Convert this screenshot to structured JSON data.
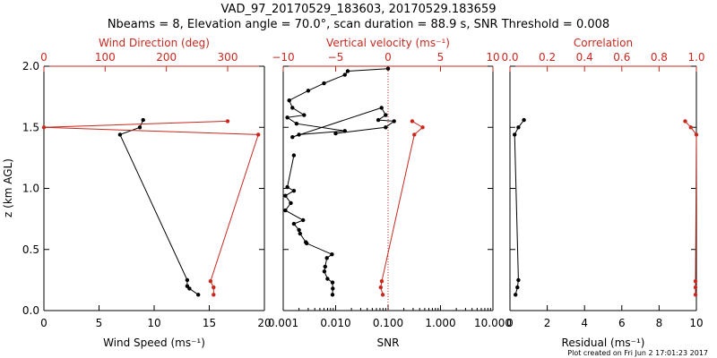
{
  "title": "VAD_97_20170529_183603, 20170529.183659",
  "subtitle": "Nbeams = 8, Elevation angle = 70.0°, scan duration = 88.9 s, SNR Threshold = 0.008",
  "footer": "Plot created on Fri Jun  2 17:01:23 2017",
  "colors": {
    "black": "#000000",
    "red": "#c8281e"
  },
  "chart_data": [
    {
      "type": "scatter",
      "panel": "wind",
      "ylabel": "z (km AGL)",
      "ylim": [
        0,
        2.0
      ],
      "yticks": [
        0.0,
        0.5,
        1.0,
        1.5,
        2.0
      ],
      "ytick_labels": [
        "0.0",
        "0.5",
        "1.0",
        "1.5",
        "2.0"
      ],
      "xlabel": "Wind Speed (ms⁻¹)",
      "xlim": [
        0,
        20
      ],
      "xticks": [
        0,
        5,
        10,
        15,
        20
      ],
      "xtick_labels": [
        "0",
        "5",
        "10",
        "15",
        "20"
      ],
      "xlabel_top": "Wind Direction (deg)",
      "xlim_top": [
        0,
        360
      ],
      "xticks_top": [
        0,
        100,
        200,
        300
      ],
      "xtick_labels_top": [
        "0",
        "100",
        "200",
        "300"
      ],
      "series": [
        {
          "axis": "bottom",
          "color": "#000000",
          "x": [
            9.0,
            8.7,
            6.9,
            13.0,
            13.0,
            13.2,
            14.0
          ],
          "y": [
            1.56,
            1.5,
            1.44,
            0.25,
            0.2,
            0.18,
            0.13
          ]
        },
        {
          "axis": "top",
          "color": "#c8281e",
          "x": [
            300,
            0,
            350,
            272,
            277,
            277
          ],
          "y": [
            1.55,
            1.5,
            1.44,
            0.24,
            0.19,
            0.13
          ]
        }
      ]
    },
    {
      "type": "line",
      "panel": "snr",
      "xlabel": "SNR",
      "xscale": "log",
      "xlim": [
        0.001,
        10
      ],
      "xticks": [
        0.001,
        0.01,
        0.1,
        1,
        10
      ],
      "xtick_labels": [
        "0.001",
        "0.010",
        "0.100",
        "1.000",
        "10.000"
      ],
      "xlabel_top": "Vertical velocity (ms⁻¹)",
      "xlim_top": [
        -10,
        10
      ],
      "xticks_top": [
        -10,
        -5,
        0,
        5,
        10
      ],
      "xtick_labels_top": [
        "−10",
        "−5",
        "0",
        "5",
        "10"
      ],
      "reference_line": {
        "axis": "bottom",
        "x": 0.1
      },
      "series": [
        {
          "axis": "bottom",
          "color": "#000000",
          "x": [
            0.1,
            0.017,
            0.015,
            0.006,
            0.003,
            0.0013,
            0.0015,
            0.0025,
            0.0012,
            0.0018,
            0.015,
            0.002,
            0.0015,
            0.075,
            0.09,
            0.065,
            0.13,
            0.09,
            0.01
          ],
          "y": [
            1.98,
            1.96,
            1.93,
            1.86,
            1.8,
            1.72,
            1.66,
            1.6,
            1.58,
            1.53,
            1.47,
            1.44,
            1.42,
            1.66,
            1.6,
            1.56,
            1.55,
            1.5,
            1.45
          ]
        },
        {
          "axis": "bottom",
          "color": "#000000",
          "x": [
            0.0016,
            0.0012,
            0.0016,
            0.0011,
            0.0014,
            0.0011,
            0.0024,
            0.0016,
            0.002,
            0.0021,
            0.0027,
            0.0028,
            0.0085,
            0.0068,
            0.0063,
            0.0061,
            0.007,
            0.0087,
            0.0088,
            0.0087
          ],
          "y": [
            1.27,
            1.01,
            0.98,
            0.94,
            0.88,
            0.82,
            0.74,
            0.71,
            0.66,
            0.63,
            0.56,
            0.55,
            0.46,
            0.43,
            0.36,
            0.32,
            0.26,
            0.23,
            0.18,
            0.13
          ]
        },
        {
          "axis": "top",
          "color": "#c8281e",
          "x": [
            2.3,
            3.3,
            2.5,
            -0.6,
            -0.7,
            -0.5
          ],
          "y": [
            1.55,
            1.5,
            1.44,
            0.24,
            0.19,
            0.13
          ]
        }
      ]
    },
    {
      "type": "scatter",
      "panel": "residual",
      "xlabel": "Residual (ms⁻¹)",
      "xlim": [
        0,
        10
      ],
      "xticks": [
        0,
        2,
        4,
        6,
        8,
        10
      ],
      "xtick_labels": [
        "0",
        "2",
        "4",
        "6",
        "8",
        "10"
      ],
      "xlabel_top": "Correlation",
      "xlim_top": [
        0,
        1
      ],
      "xticks_top": [
        0,
        0.2,
        0.4,
        0.6,
        0.8,
        1.0
      ],
      "xtick_labels_top": [
        "0.0",
        "0.2",
        "0.4",
        "0.6",
        "0.8",
        "1.0"
      ],
      "series": [
        {
          "axis": "bottom",
          "color": "#000000",
          "x": [
            0.75,
            0.45,
            0.25,
            0.45,
            0.4,
            0.3
          ],
          "y": [
            1.56,
            1.5,
            1.44,
            0.25,
            0.19,
            0.13
          ]
        },
        {
          "axis": "top",
          "color": "#c8281e",
          "x": [
            0.94,
            0.97,
            1.0,
            0.995,
            0.995,
            0.995
          ],
          "y": [
            1.55,
            1.5,
            1.44,
            0.24,
            0.19,
            0.13
          ]
        }
      ]
    }
  ]
}
